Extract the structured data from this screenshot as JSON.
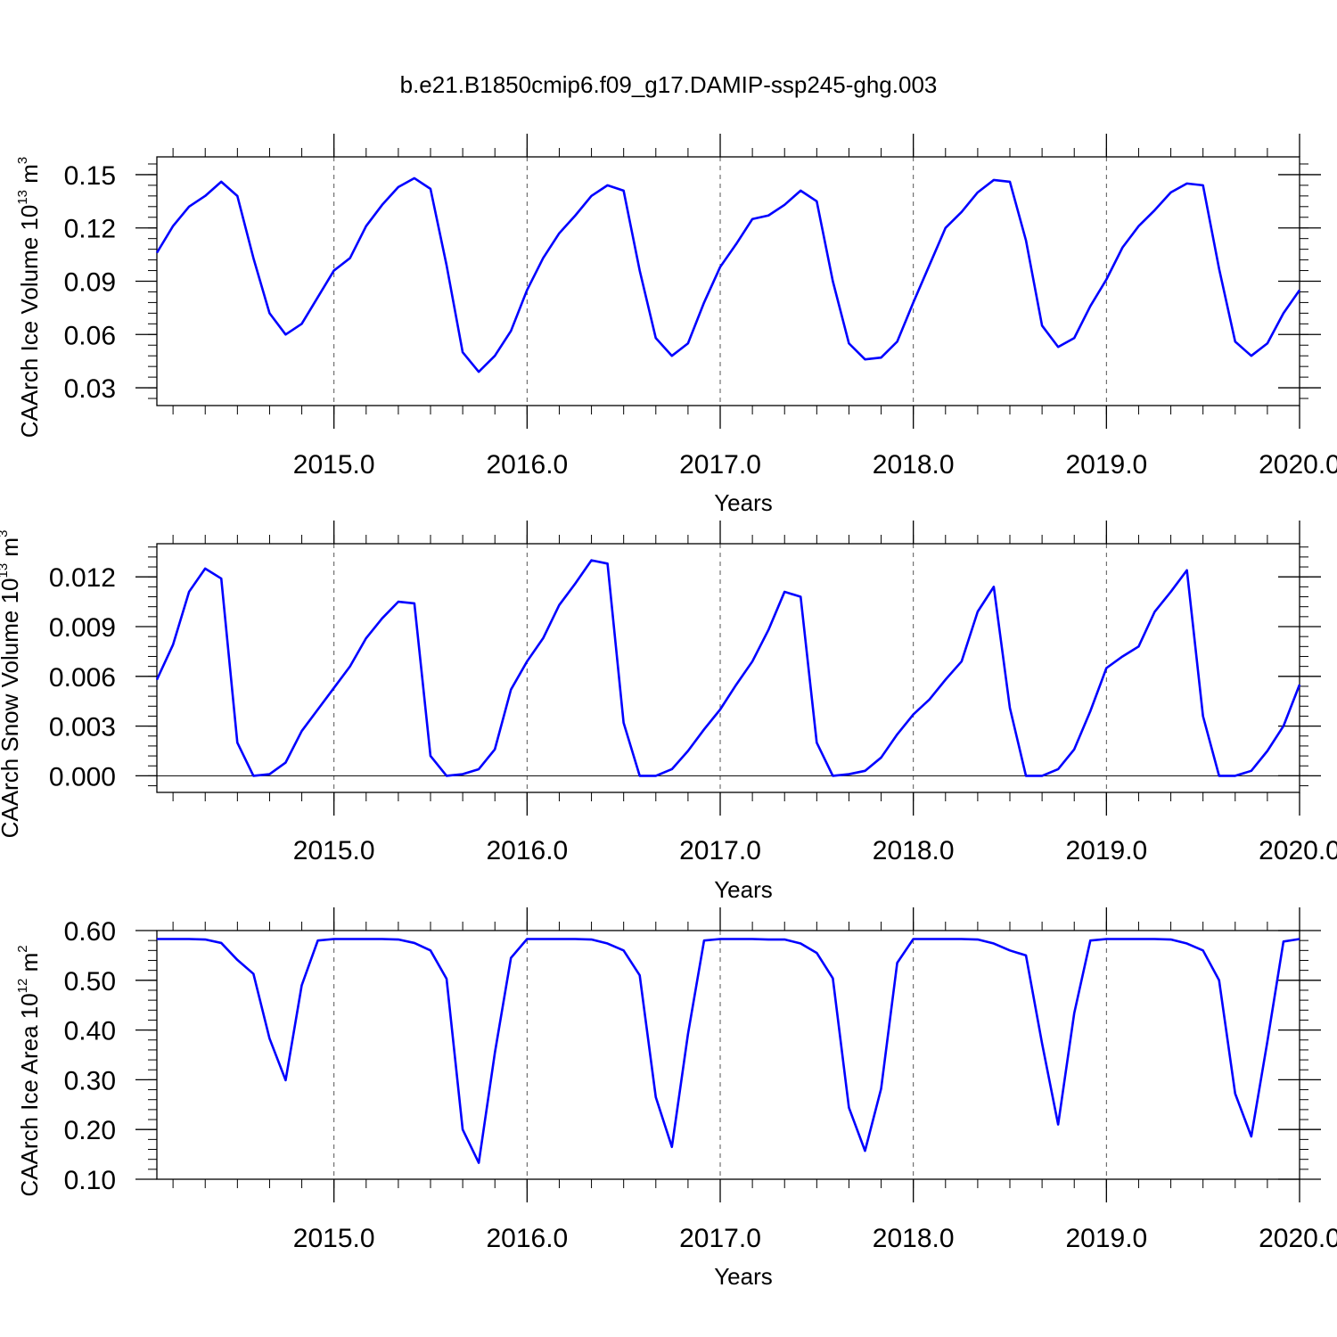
{
  "title": "b.e21.B1850cmip6.f09_g17.DAMIP-ssp245-ghg.003",
  "colors": {
    "series": "#0000ff",
    "axes": "#000000",
    "grid": "#555555"
  },
  "chart_data": [
    {
      "type": "line",
      "ylabel": {
        "prefix": "CAArch Ice Volume 10",
        "exponent": "13",
        "unit": " m",
        "unit_exponent": "3"
      },
      "xlabel": "Years",
      "xlim": [
        2014.083,
        2020.0
      ],
      "ylim": [
        0.02,
        0.16
      ],
      "x_major_ticks": [
        2015,
        2016,
        2017,
        2018,
        2019,
        2020
      ],
      "x_tick_labels": [
        "2015.0",
        "2016.0",
        "2017.0",
        "2018.0",
        "2019.0",
        "2020.0"
      ],
      "y_major_ticks": [
        0.03,
        0.06,
        0.09,
        0.12,
        0.15
      ],
      "y_tick_labels": [
        "0.03",
        "0.06",
        "0.09",
        "0.12",
        "0.15"
      ],
      "y_minor_step": 0.006,
      "grid": "dashed vertical at major x ticks",
      "series": [
        {
          "values": [
            0.106,
            0.121,
            0.132,
            0.138,
            0.146,
            0.138,
            0.103,
            0.072,
            0.06,
            0.066,
            0.081,
            0.096,
            0.103,
            0.121,
            0.133,
            0.143,
            0.148,
            0.142,
            0.099,
            0.05,
            0.039,
            0.048,
            0.062,
            0.085,
            0.103,
            0.117,
            0.127,
            0.138,
            0.144,
            0.141,
            0.096,
            0.058,
            0.048,
            0.055,
            0.078,
            0.098,
            0.111,
            0.125,
            0.127,
            0.133,
            0.141,
            0.135,
            0.09,
            0.055,
            0.046,
            0.047,
            0.056,
            0.078,
            0.099,
            0.12,
            0.129,
            0.14,
            0.147,
            0.146,
            0.113,
            0.065,
            0.053,
            0.058,
            0.076,
            0.091,
            0.109,
            0.121,
            0.13,
            0.14,
            0.145,
            0.144,
            0.097,
            0.056,
            0.048,
            0.055,
            0.072,
            0.085
          ]
        }
      ]
    },
    {
      "type": "line",
      "ylabel": {
        "prefix": "CAArch Snow Volume 10",
        "exponent": "13",
        "unit": " m",
        "unit_exponent": "3"
      },
      "xlabel": "Years",
      "xlim": [
        2014.083,
        2020.0
      ],
      "ylim": [
        -0.001,
        0.014
      ],
      "x_major_ticks": [
        2015,
        2016,
        2017,
        2018,
        2019,
        2020
      ],
      "x_tick_labels": [
        "2015.0",
        "2016.0",
        "2017.0",
        "2018.0",
        "2019.0",
        "2020.0"
      ],
      "y_major_ticks": [
        0.0,
        0.003,
        0.006,
        0.009,
        0.012
      ],
      "y_tick_labels": [
        "0.000",
        "0.003",
        "0.006",
        "0.009",
        "0.012"
      ],
      "y_minor_step": 0.0006,
      "grid": "dashed vertical at major x ticks",
      "series": [
        {
          "values": [
            0.0058,
            0.0079,
            0.0111,
            0.0125,
            0.0119,
            0.002,
            0.0,
            0.0001,
            0.0008,
            0.0027,
            0.004,
            0.0053,
            0.0066,
            0.0083,
            0.0095,
            0.0105,
            0.0104,
            0.0012,
            0.0,
            0.0001,
            0.0004,
            0.0016,
            0.0052,
            0.0069,
            0.0083,
            0.0103,
            0.0116,
            0.013,
            0.0128,
            0.0032,
            0.0,
            0.0,
            0.0004,
            0.0015,
            0.0028,
            0.004,
            0.0055,
            0.0069,
            0.0088,
            0.0111,
            0.0108,
            0.002,
            0.0,
            0.0001,
            0.0003,
            0.0011,
            0.0025,
            0.0037,
            0.0046,
            0.0058,
            0.0069,
            0.0099,
            0.0114,
            0.0041,
            0.0,
            0.0,
            0.0004,
            0.0016,
            0.0039,
            0.0065,
            0.0072,
            0.0078,
            0.0099,
            0.0111,
            0.0124,
            0.0036,
            0.0,
            0.0,
            0.0003,
            0.0015,
            0.003,
            0.0055
          ]
        }
      ]
    },
    {
      "type": "line",
      "ylabel": {
        "prefix": "CAArch Ice Area 10",
        "exponent": "12",
        "unit": " m",
        "unit_exponent": "2"
      },
      "xlabel": "Years",
      "xlim": [
        2014.083,
        2020.0
      ],
      "ylim": [
        0.1,
        0.6
      ],
      "x_major_ticks": [
        2015,
        2016,
        2017,
        2018,
        2019,
        2020
      ],
      "x_tick_labels": [
        "2015.0",
        "2016.0",
        "2017.0",
        "2018.0",
        "2019.0",
        "2020.0"
      ],
      "y_major_ticks": [
        0.1,
        0.2,
        0.3,
        0.4,
        0.5,
        0.6
      ],
      "y_tick_labels": [
        "0.10",
        "0.20",
        "0.30",
        "0.40",
        "0.50",
        "0.60"
      ],
      "y_minor_step": 0.02,
      "grid": "dashed vertical at major x ticks",
      "series": [
        {
          "values": [
            0.583,
            0.583,
            0.583,
            0.582,
            0.575,
            0.541,
            0.513,
            0.383,
            0.299,
            0.49,
            0.58,
            0.583,
            0.583,
            0.583,
            0.583,
            0.582,
            0.575,
            0.56,
            0.503,
            0.2,
            0.133,
            0.354,
            0.545,
            0.583,
            0.583,
            0.583,
            0.583,
            0.582,
            0.574,
            0.56,
            0.51,
            0.265,
            0.165,
            0.392,
            0.58,
            0.583,
            0.583,
            0.583,
            0.582,
            0.582,
            0.574,
            0.555,
            0.504,
            0.244,
            0.157,
            0.282,
            0.535,
            0.583,
            0.583,
            0.583,
            0.583,
            0.582,
            0.574,
            0.56,
            0.55,
            0.373,
            0.21,
            0.434,
            0.58,
            0.583,
            0.583,
            0.583,
            0.583,
            0.582,
            0.574,
            0.56,
            0.5,
            0.272,
            0.186,
            0.377,
            0.578,
            0.583
          ]
        }
      ]
    }
  ]
}
